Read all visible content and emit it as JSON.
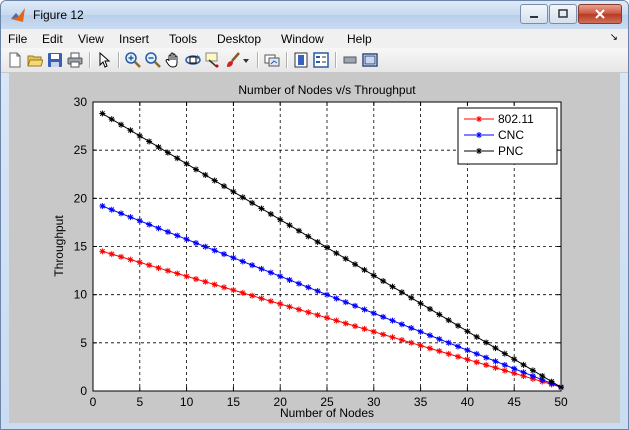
{
  "window": {
    "title": "Figure 12"
  },
  "menu": [
    "File",
    "Edit",
    "View",
    "Insert",
    "Tools",
    "Desktop",
    "Window",
    "Help"
  ],
  "toolbar_icons": [
    "new-figure-icon",
    "open-file-icon",
    "save-icon",
    "print-icon",
    "edit-plot-arrow-icon",
    "zoom-in-icon",
    "zoom-out-icon",
    "pan-hand-icon",
    "rotate-3d-icon",
    "data-cursor-icon",
    "brush-icon",
    "dropdown-arrow-icon",
    "link-plot-icon",
    "insert-colorbar-icon",
    "insert-legend-icon",
    "hide-plot-tools-icon",
    "show-plot-tools-icon"
  ],
  "chart_data": {
    "type": "line",
    "title": "Number of Nodes v/s Throughput",
    "xlabel": "Number of Nodes",
    "ylabel": "Throughput",
    "xlim": [
      0,
      50
    ],
    "ylim": [
      0,
      30
    ],
    "xticks": [
      0,
      5,
      10,
      15,
      20,
      25,
      30,
      35,
      40,
      45,
      50
    ],
    "yticks": [
      0,
      5,
      10,
      15,
      20,
      25,
      30
    ],
    "grid": true,
    "legend_position": "top-right",
    "x": [
      1,
      2,
      3,
      4,
      5,
      6,
      7,
      8,
      9,
      10,
      11,
      12,
      13,
      14,
      15,
      16,
      17,
      18,
      19,
      20,
      21,
      22,
      23,
      24,
      25,
      26,
      27,
      28,
      29,
      30,
      31,
      32,
      33,
      34,
      35,
      36,
      37,
      38,
      39,
      40,
      41,
      42,
      43,
      44,
      45,
      46,
      47,
      48,
      49,
      50
    ],
    "series": [
      {
        "name": "802.11",
        "color": "#ff0000",
        "marker": "*",
        "start": 14.5,
        "end": 0.4
      },
      {
        "name": "CNC",
        "color": "#0000ff",
        "marker": "*",
        "start": 19.2,
        "end": 0.4
      },
      {
        "name": "PNC",
        "color": "#000000",
        "marker": "*",
        "start": 28.8,
        "end": 0.4
      }
    ]
  }
}
